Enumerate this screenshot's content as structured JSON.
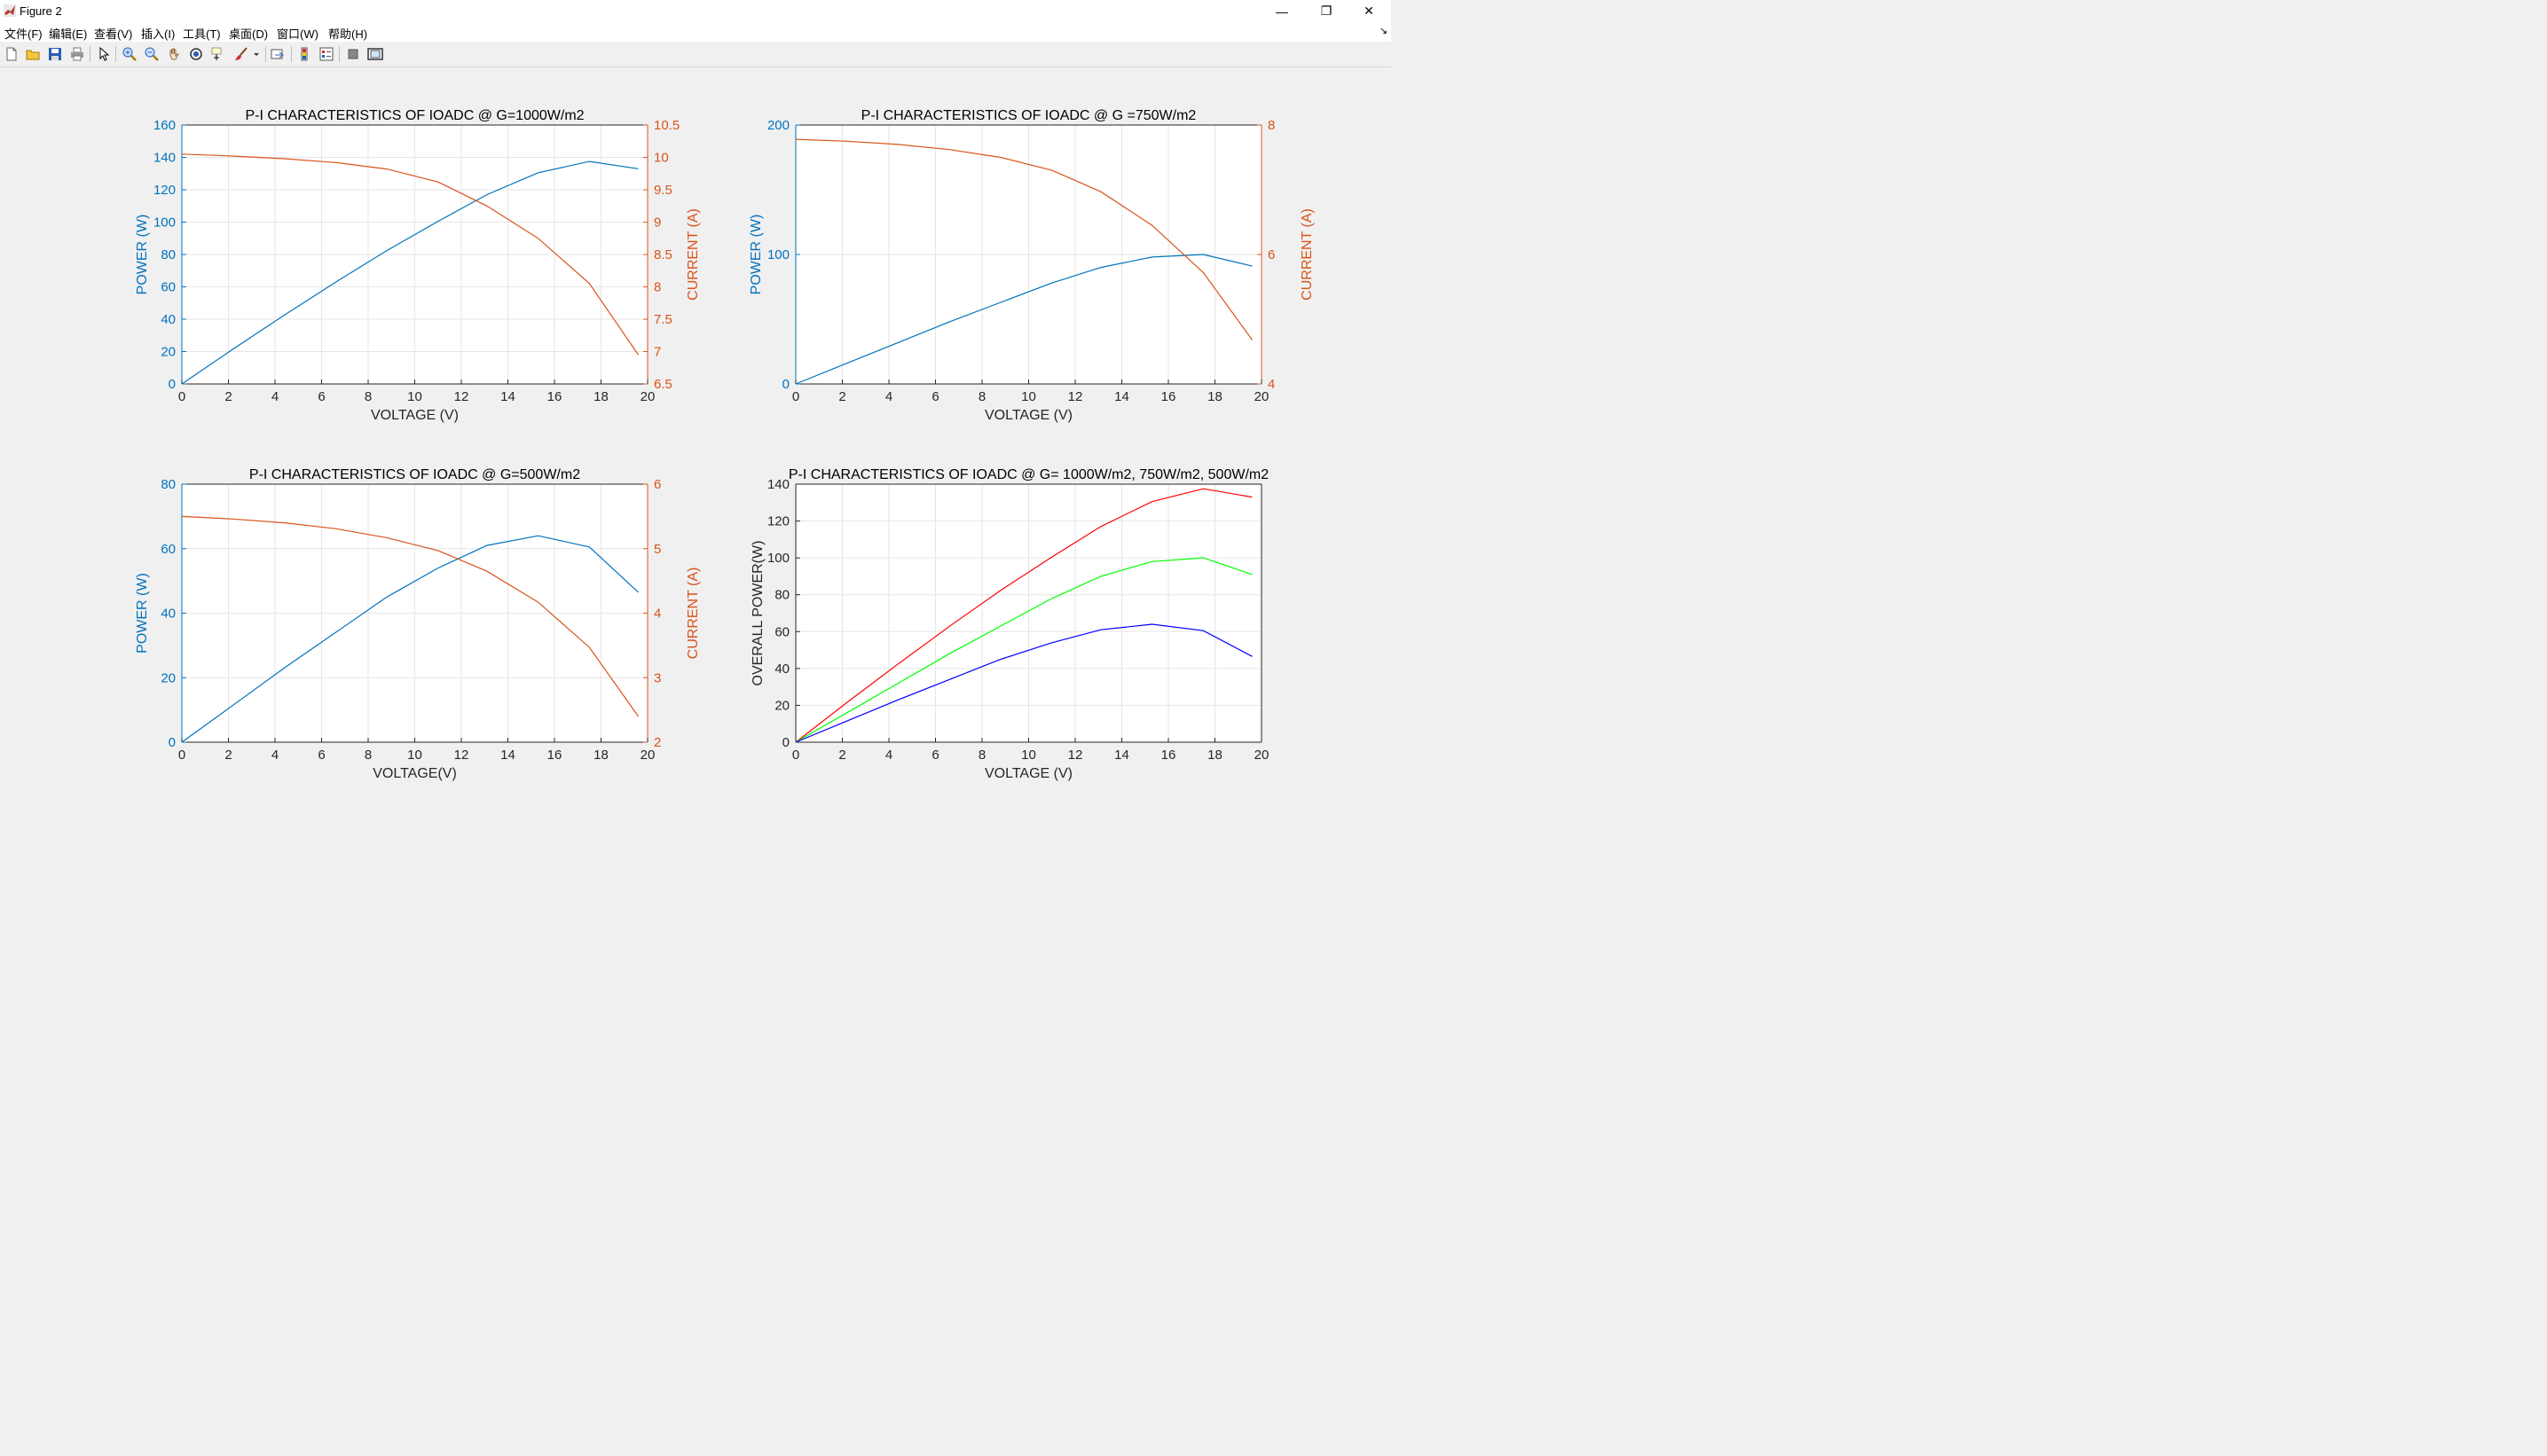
{
  "window": {
    "title": "Figure 2",
    "minimize": "—",
    "restore": "❐",
    "close": "✕",
    "dock": "↘"
  },
  "menu": [
    "文件(F)",
    "编辑(E)",
    "查看(V)",
    "插入(I)",
    "工具(T)",
    "桌面(D)",
    "窗口(W)",
    "帮助(H)"
  ],
  "toolbar": {
    "icons": [
      "new-figure-icon",
      "open-file-icon",
      "save-icon",
      "print-icon",
      "edit-plot-arrow-icon",
      "zoom-in-icon",
      "zoom-out-icon",
      "pan-hand-icon",
      "rotate-3d-icon",
      "data-cursor-icon",
      "brush-icon",
      "brush-dropdown-icon",
      "link-plot-icon",
      "insert-colorbar-icon",
      "insert-legend-icon",
      "hide-plot-tools-icon",
      "show-plot-tools-icon"
    ]
  },
  "colors": {
    "power": "#0072BD",
    "current": "#D95319",
    "g1000": "#ff0000",
    "g750": "#00ff00",
    "g500": "#0000ff",
    "grid": "#e6e6e6",
    "axis": "#262626"
  },
  "chart_data": [
    {
      "type": "line",
      "title": "P-I CHARACTERISTICS OF IOADC @ G=1000W/m2",
      "xlabel": "VOLTAGE (V)",
      "ylabel": "POWER (W)",
      "y2label": "CURRENT (A)",
      "xlim": [
        0,
        20
      ],
      "ylim": [
        0,
        160
      ],
      "y2lim": [
        6.5,
        10.5
      ],
      "xticks": [
        0,
        2,
        4,
        6,
        8,
        10,
        12,
        14,
        16,
        18,
        20
      ],
      "yticks": [
        0,
        20,
        40,
        60,
        80,
        100,
        120,
        140,
        160
      ],
      "y2ticks": [
        6.5,
        7,
        7.5,
        8,
        8.5,
        9,
        9.5,
        10,
        10.5
      ],
      "y2ticklabels": [
        "6.5",
        "7",
        "7.5",
        "8",
        "8.5",
        "9",
        "9.5",
        "10",
        "10.5"
      ],
      "x": [
        0,
        2.2,
        4.4,
        6.6,
        8.8,
        11,
        13.1,
        15.3,
        17.5,
        19.6
      ],
      "series": [
        {
          "axis": "left",
          "color": "#0072BD",
          "values": [
            0,
            21.6,
            42.5,
            62.9,
            82.4,
            100.5,
            117,
            130.5,
            137.5,
            133
          ]
        },
        {
          "axis": "right",
          "color": "#D95319",
          "values": [
            10.05,
            10.02,
            9.98,
            9.92,
            9.82,
            9.62,
            9.25,
            8.75,
            8.05,
            6.95
          ]
        }
      ]
    },
    {
      "type": "line",
      "title": "P-I CHARACTERISTICS OF IOADC @ G =750W/m2",
      "xlabel": "VOLTAGE (V)",
      "ylabel": "POWER (W)",
      "y2label": "CURRENT (A)",
      "xlim": [
        0,
        20
      ],
      "ylim": [
        0,
        200
      ],
      "y2lim": [
        4,
        8
      ],
      "xticks": [
        0,
        2,
        4,
        6,
        8,
        10,
        12,
        14,
        16,
        18,
        20
      ],
      "yticks": [
        0,
        100,
        200
      ],
      "y2ticks": [
        4,
        6,
        8
      ],
      "y2ticklabels": [
        "4",
        "6",
        "8"
      ],
      "x": [
        0,
        2.2,
        4.4,
        6.6,
        8.8,
        11,
        13.1,
        15.3,
        17.5,
        19.6
      ],
      "series": [
        {
          "axis": "left",
          "color": "#0072BD",
          "values": [
            0,
            16,
            32,
            48,
            63,
            78,
            90,
            98,
            100,
            91
          ]
        },
        {
          "axis": "right",
          "color": "#D95319",
          "values": [
            7.78,
            7.75,
            7.7,
            7.62,
            7.5,
            7.3,
            6.97,
            6.45,
            5.72,
            4.68
          ]
        }
      ]
    },
    {
      "type": "line",
      "title": "P-I CHARACTERISTICS OF IOADC @ G=500W/m2",
      "xlabel": "VOLTAGE(V)",
      "ylabel": "POWER (W)",
      "y2label": "CURRENT (A)",
      "xlim": [
        0,
        20
      ],
      "ylim": [
        0,
        80
      ],
      "y2lim": [
        2,
        6
      ],
      "xticks": [
        0,
        2,
        4,
        6,
        8,
        10,
        12,
        14,
        16,
        18,
        20
      ],
      "yticks": [
        0,
        20,
        40,
        60,
        80
      ],
      "y2ticks": [
        2,
        3,
        4,
        5,
        6
      ],
      "y2ticklabels": [
        "2",
        "3",
        "4",
        "5",
        "6"
      ],
      "x": [
        0,
        2.2,
        4.4,
        6.6,
        8.8,
        11,
        13.1,
        15.3,
        17.5,
        19.6
      ],
      "series": [
        {
          "axis": "left",
          "color": "#0072BD",
          "values": [
            0,
            11.5,
            23,
            34,
            45,
            54,
            61,
            64,
            60.5,
            46.5
          ]
        },
        {
          "axis": "right",
          "color": "#D95319",
          "values": [
            5.5,
            5.46,
            5.4,
            5.31,
            5.17,
            4.97,
            4.65,
            4.17,
            3.47,
            2.4
          ]
        }
      ]
    },
    {
      "type": "line",
      "title": "P-I CHARACTERISTICS OF IOADC @ G= 1000W/m2, 750W/m2, 500W/m2",
      "xlabel": "VOLTAGE (V)",
      "ylabel": "OVERALL POWER(W)",
      "xlim": [
        0,
        20
      ],
      "ylim": [
        0,
        140
      ],
      "xticks": [
        0,
        2,
        4,
        6,
        8,
        10,
        12,
        14,
        16,
        18,
        20
      ],
      "yticks": [
        0,
        20,
        40,
        60,
        80,
        100,
        120,
        140
      ],
      "x": [
        0,
        2.2,
        4.4,
        6.6,
        8.8,
        11,
        13.1,
        15.3,
        17.5,
        19.6
      ],
      "series": [
        {
          "axis": "left",
          "color": "#ff0000",
          "values": [
            0,
            21.6,
            42.5,
            62.9,
            82.4,
            100.5,
            117,
            130.5,
            137.5,
            133
          ]
        },
        {
          "axis": "left",
          "color": "#00ff00",
          "values": [
            0,
            16,
            32,
            48,
            63,
            78,
            90,
            98,
            100,
            91
          ]
        },
        {
          "axis": "left",
          "color": "#0000ff",
          "values": [
            0,
            11.5,
            23,
            34,
            45,
            54,
            61,
            64,
            60.5,
            46.5
          ]
        }
      ]
    }
  ]
}
